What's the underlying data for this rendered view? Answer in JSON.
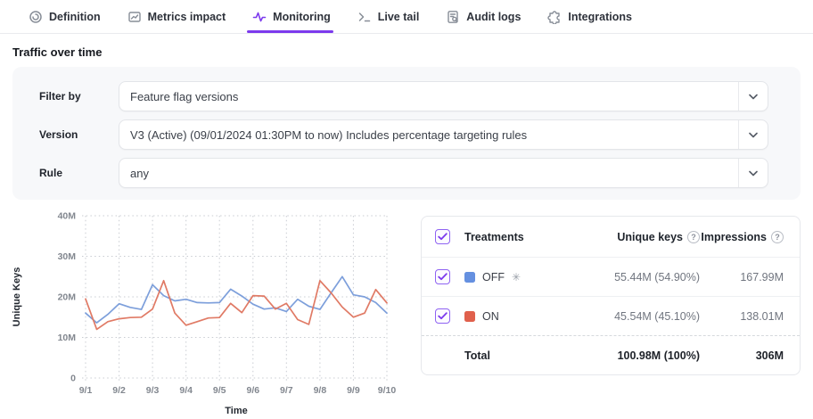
{
  "tabs": [
    {
      "label": "Definition",
      "active": false
    },
    {
      "label": "Metrics impact",
      "active": false
    },
    {
      "label": "Monitoring",
      "active": true
    },
    {
      "label": "Live tail",
      "active": false
    },
    {
      "label": "Audit logs",
      "active": false
    },
    {
      "label": "Integrations",
      "active": false
    }
  ],
  "page": {
    "title": "Traffic over time"
  },
  "filters": {
    "rows": [
      {
        "label": "Filter by",
        "value": "Feature flag versions"
      },
      {
        "label": "Version",
        "value": "V3 (Active) (09/01/2024 01:30PM to now) Includes percentage targeting rules"
      },
      {
        "label": "Rule",
        "value": "any"
      }
    ]
  },
  "chart_data": {
    "type": "line",
    "xlabel": "Time",
    "ylabel": "Unique Keys",
    "x_tick_labels": [
      "9/1",
      "9/2",
      "9/3",
      "9/4",
      "9/5",
      "9/6",
      "9/7",
      "9/8",
      "9/9",
      "9/10"
    ],
    "points_per_interval": 3,
    "unit": "M",
    "ylim": [
      0,
      40
    ],
    "y_ticks": [
      0,
      10,
      20,
      30,
      40
    ],
    "y_tick_labels": [
      "0",
      "10M",
      "20M",
      "30M",
      "40M"
    ],
    "grid": "dotted",
    "legend_position": "table-right",
    "series": [
      {
        "name": "OFF",
        "color": "#7d9fdb",
        "values": [
          16,
          13.6,
          15.7,
          18.3,
          17.4,
          16.9,
          23,
          20.3,
          19,
          19.4,
          18.6,
          18.5,
          18.6,
          21.9,
          20.2,
          18.2,
          17.0,
          17.3,
          16.4,
          19.4,
          17.7,
          16.9,
          21,
          25,
          20.5,
          20,
          18.6,
          16
        ]
      },
      {
        "name": "ON",
        "color": "#e07a65",
        "values": [
          19.5,
          12,
          13.9,
          14.6,
          14.9,
          15,
          17,
          24,
          16,
          13,
          13.9,
          14.8,
          14.9,
          18.4,
          16.1,
          20.3,
          20.2,
          17,
          18.4,
          14.4,
          13.2,
          24,
          21,
          17.5,
          15,
          16,
          21.8,
          18.5
        ]
      }
    ]
  },
  "treatments_table": {
    "headers": {
      "treatments": "Treatments",
      "unique_keys": "Unique keys",
      "impressions": "Impressions"
    },
    "rows": [
      {
        "name": "OFF",
        "checked": true,
        "color": "#6590e0",
        "default_marker": "✳",
        "unique_keys": "55.44M (54.90%)",
        "impressions": "167.99M"
      },
      {
        "name": "ON",
        "checked": true,
        "color": "#e0604c",
        "default_marker": "",
        "unique_keys": "45.54M (45.10%)",
        "impressions": "138.01M"
      }
    ],
    "total": {
      "label": "Total",
      "unique_keys": "100.98M (100%)",
      "impressions": "306M"
    }
  },
  "icons": {
    "question": "?"
  },
  "colors": {
    "accent": "#7c3aed",
    "grid": "#c9ccd2",
    "panel_bg": "#f7f8fa"
  }
}
